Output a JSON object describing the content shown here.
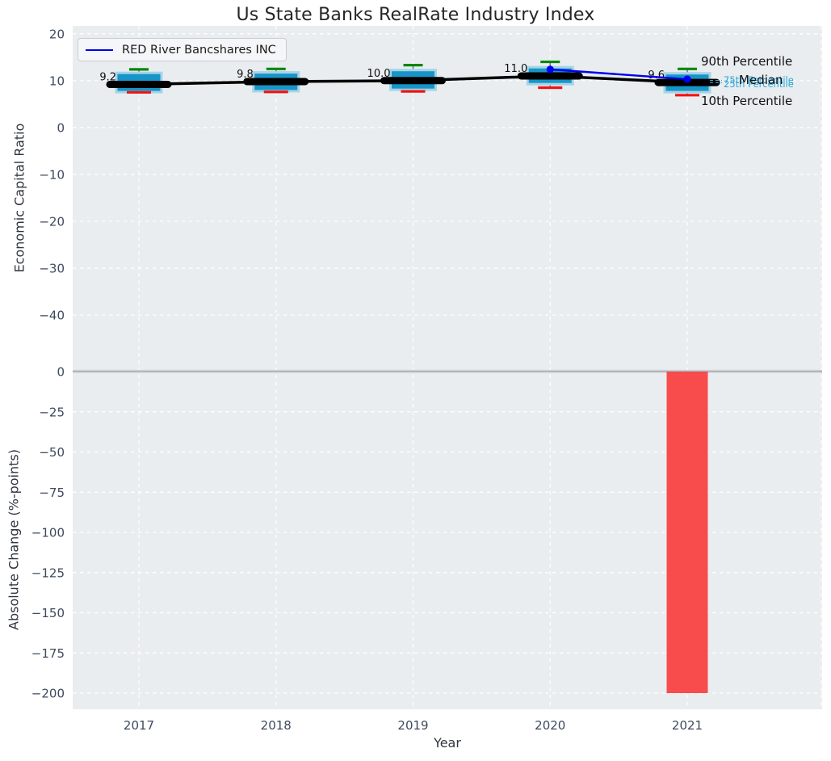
{
  "colors": {
    "plot_bg": "#e9edef",
    "grid": "#ffffff",
    "box_fill": "#1795c8",
    "box_fill_light": "#a6d4e8",
    "whisker": "#5c6166",
    "p90_cap": "#0a870a",
    "p10_cap": "#f21414",
    "median_line": "#000000",
    "company_line": "#0000ee",
    "bar_negative": "#f93e3e",
    "tick_label": "#3e4a5f",
    "zero_line": "#a9aeb2",
    "boundary_band": "#cdd1d4"
  },
  "annotations": {
    "p90": "90th Percentile",
    "p75": "75th Percentile",
    "median": "Median",
    "p25": "25th Percentile",
    "p10": "10th Percentile"
  },
  "chart_data": [
    {
      "type": "boxplot+line",
      "title": "Us State Banks RealRate Industry Index",
      "ylabel": "Economic Capital Ratio",
      "x": [
        2017,
        2018,
        2019,
        2020,
        2021
      ],
      "series": [
        {
          "name": "Median",
          "values": [
            9.2,
            9.8,
            10.0,
            11.0,
            9.6
          ]
        },
        {
          "name": "75th Percentile",
          "values": [
            11.4,
            11.5,
            12.0,
            12.6,
            11.3
          ]
        },
        {
          "name": "25th Percentile",
          "values": [
            7.8,
            8.0,
            8.3,
            9.5,
            7.8
          ]
        },
        {
          "name": "90th Percentile",
          "values": [
            12.4,
            12.5,
            13.3,
            14.0,
            12.5
          ]
        },
        {
          "name": "10th Percentile",
          "values": [
            7.5,
            7.6,
            7.7,
            8.5,
            6.9
          ]
        },
        {
          "name": "RED River Bancshares INC",
          "x": [
            2020,
            2021
          ],
          "values": [
            12.4,
            10.3
          ]
        }
      ],
      "median_labels": [
        "9.2",
        "9.8",
        "10.0",
        "11.0",
        "9.6"
      ],
      "yticks": [
        20,
        10,
        0,
        -10,
        -20,
        -30,
        -40
      ],
      "ylim": [
        -51.7,
        21.7
      ],
      "grid": true,
      "legend_position": "upper left"
    },
    {
      "type": "bar",
      "ylabel": "Absolute Change (%-points)",
      "xlabel": "Year",
      "categories": [
        2017,
        2018,
        2019,
        2020,
        2021
      ],
      "values": [
        0,
        0,
        0,
        0,
        -200
      ],
      "yticks": [
        0,
        -25,
        -50,
        -75,
        -100,
        -125,
        -150,
        -175,
        -200
      ],
      "ylim": [
        -210,
        1
      ],
      "grid": true
    }
  ]
}
